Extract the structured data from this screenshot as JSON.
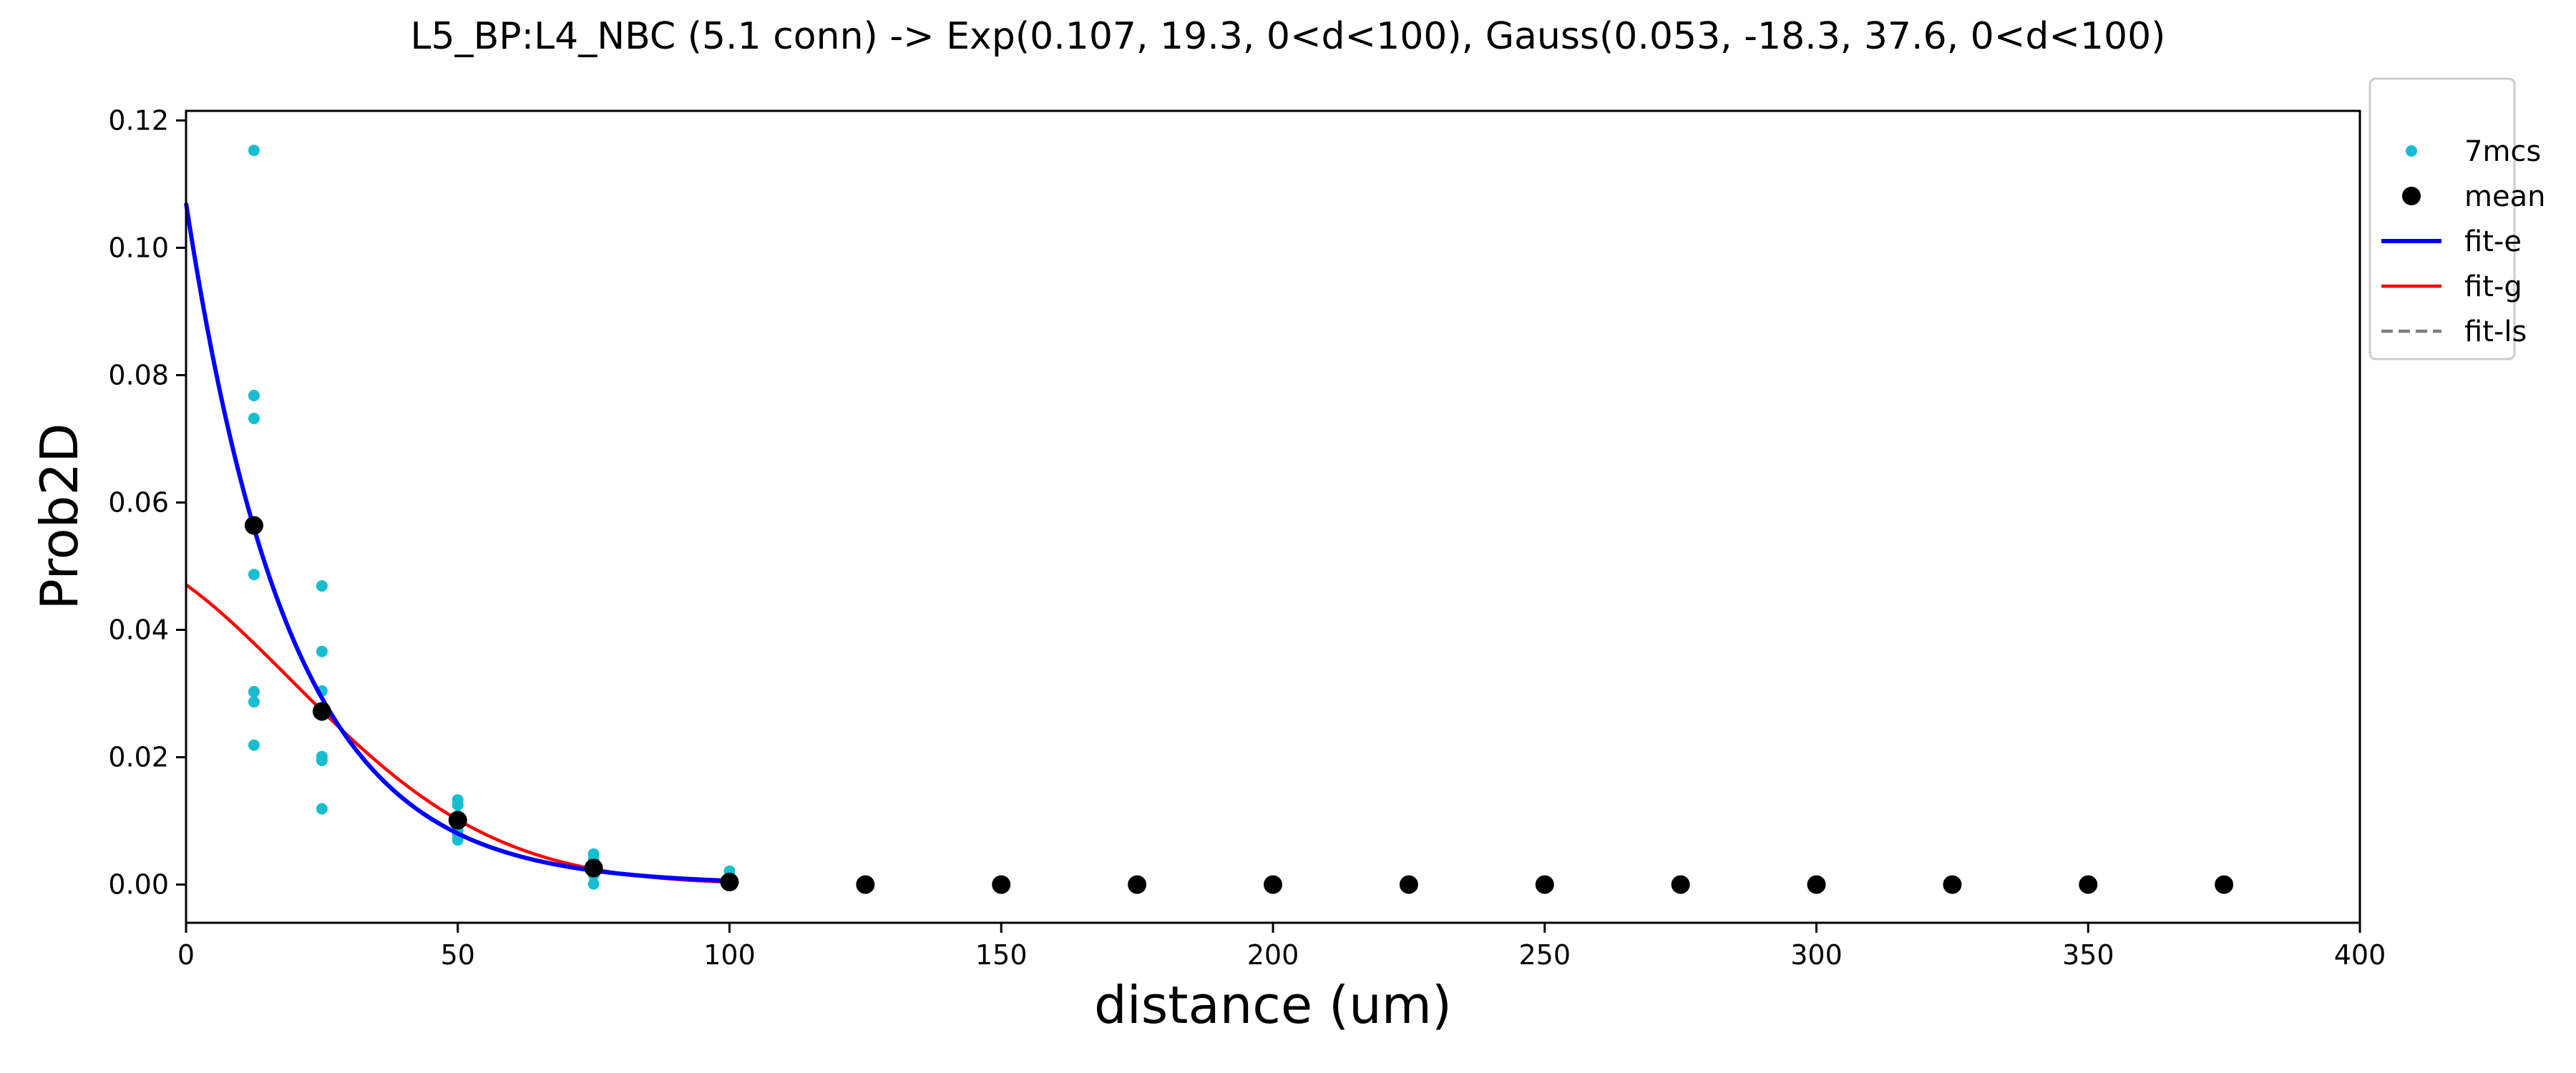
{
  "chart_data": {
    "type": "scatter",
    "title": "L5_BP:L4_NBC (5.1 conn) -> Exp(0.107, 19.3, 0<d<100), Gauss(0.053, -18.3, 37.6, 0<d<100)",
    "xlabel": "distance (um)",
    "ylabel": "Prob2D",
    "xlim": [
      0,
      400
    ],
    "ylim": [
      -0.006,
      0.1215
    ],
    "x_ticks": [
      0,
      50,
      100,
      150,
      200,
      250,
      300,
      350,
      400
    ],
    "y_ticks": [
      0.0,
      0.02,
      0.04,
      0.06,
      0.08,
      0.1,
      0.12
    ],
    "x_tick_labels": [
      "0",
      "50",
      "100",
      "150",
      "200",
      "250",
      "300",
      "350",
      "400"
    ],
    "y_tick_labels": [
      "0.00",
      "0.02",
      "0.04",
      "0.06",
      "0.08",
      "0.10",
      "0.12"
    ],
    "grid": false,
    "legend_position": "outside-top-right",
    "series": [
      {
        "name": "7mcs",
        "kind": "scatter-small",
        "color": "#17becf",
        "points": [
          [
            12.5,
            0.1153
          ],
          [
            12.5,
            0.0768
          ],
          [
            12.5,
            0.0732
          ],
          [
            12.5,
            0.0487
          ],
          [
            12.5,
            0.0303
          ],
          [
            12.5,
            0.0287
          ],
          [
            12.5,
            0.0219
          ],
          [
            25,
            0.0469
          ],
          [
            25,
            0.0366
          ],
          [
            25,
            0.0304
          ],
          [
            25,
            0.0266
          ],
          [
            25,
            0.0201
          ],
          [
            25,
            0.0195
          ],
          [
            25,
            0.0119
          ],
          [
            50,
            0.0133
          ],
          [
            50,
            0.0125
          ],
          [
            50,
            0.0108
          ],
          [
            50,
            0.0096
          ],
          [
            50,
            0.0085
          ],
          [
            50,
            0.0078
          ],
          [
            50,
            0.007
          ],
          [
            75,
            0.0048
          ],
          [
            75,
            0.004
          ],
          [
            75,
            0.003
          ],
          [
            75,
            0.0025
          ],
          [
            75,
            0.002
          ],
          [
            75,
            0.0015
          ],
          [
            75,
            0.0001
          ],
          [
            100,
            0.0021
          ],
          [
            100,
            0.0012
          ],
          [
            100,
            0.0008
          ],
          [
            100,
            0.0004
          ],
          [
            100,
            0.0002
          ],
          [
            100,
            0.0001
          ],
          [
            100,
            0.0
          ]
        ]
      },
      {
        "name": "mean",
        "kind": "scatter-large",
        "color": "#000000",
        "points": [
          [
            12.5,
            0.0564
          ],
          [
            25,
            0.0272
          ],
          [
            50,
            0.0101
          ],
          [
            75,
            0.0026
          ],
          [
            100,
            0.0004
          ],
          [
            125,
            0.0
          ],
          [
            150,
            0.0
          ],
          [
            175,
            0.0
          ],
          [
            200,
            0.0
          ],
          [
            225,
            0.0
          ],
          [
            250,
            0.0
          ],
          [
            275,
            0.0
          ],
          [
            300,
            0.0
          ],
          [
            325,
            0.0
          ],
          [
            350,
            0.0
          ],
          [
            375,
            0.0
          ]
        ]
      },
      {
        "name": "fit-e",
        "kind": "line",
        "color": "#0000ff",
        "function": "exp",
        "params": {
          "a": 0.107,
          "lambda": 19.3
        },
        "domain": [
          0,
          100
        ]
      },
      {
        "name": "fit-g",
        "kind": "line",
        "color": "#ff0000",
        "function": "gauss",
        "params": {
          "a": 0.053,
          "mu": -18.3,
          "sigma": 37.6
        },
        "domain": [
          0,
          100
        ]
      },
      {
        "name": "fit-ls",
        "kind": "dashed-line",
        "color": "#808080",
        "legend_only": true
      }
    ]
  }
}
